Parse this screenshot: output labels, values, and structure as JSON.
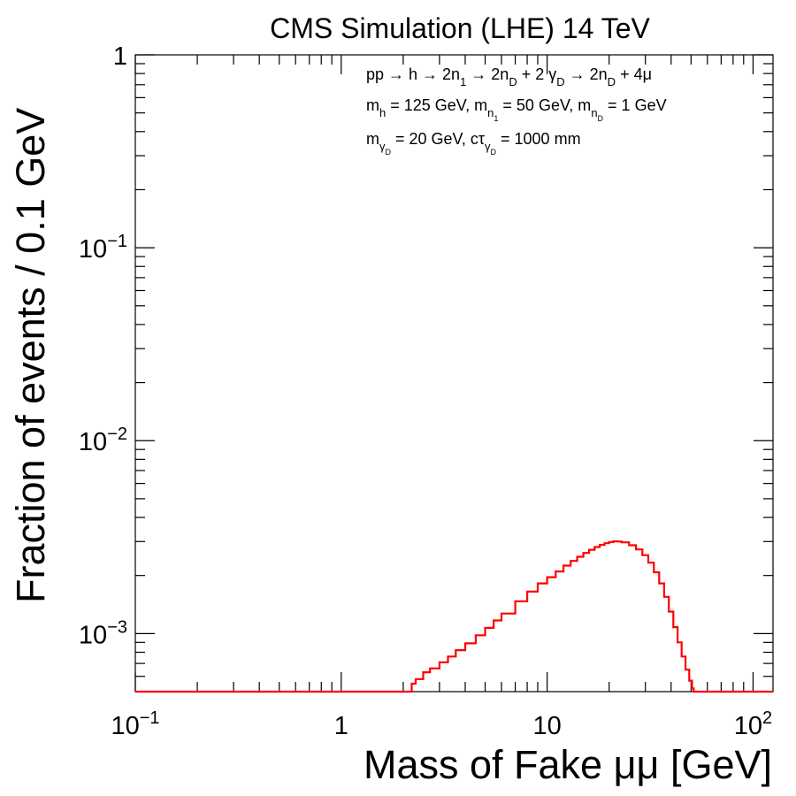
{
  "chart_data": {
    "type": "line",
    "title": "CMS Simulation (LHE) 14 TeV",
    "xlabel": "Mass of Fake μμ [GeV]",
    "ylabel": "Fraction of events / 0.1 GeV",
    "x_scale": "log",
    "y_scale": "log",
    "xlim": [
      0.1,
      125
    ],
    "ylim": [
      0.0005,
      1
    ],
    "x_ticks": [
      {
        "value": 0.1,
        "base": "10",
        "exp": "−1"
      },
      {
        "value": 1,
        "base": "1",
        "exp": ""
      },
      {
        "value": 10,
        "base": "10",
        "exp": ""
      },
      {
        "value": 100,
        "base": "10",
        "exp": "2"
      }
    ],
    "y_ticks": [
      {
        "value": 0.001,
        "base": "10",
        "exp": "−3"
      },
      {
        "value": 0.01,
        "base": "10",
        "exp": "−2"
      },
      {
        "value": 0.1,
        "base": "10",
        "exp": "−1"
      },
      {
        "value": 1,
        "base": "1",
        "exp": ""
      }
    ],
    "legend_lines": [
      {
        "parts": [
          {
            "t": "pp → h → 2n"
          },
          {
            "t": "1",
            "sub": true
          },
          {
            "t": " → 2n"
          },
          {
            "t": "D",
            "sub": true
          },
          {
            "t": " + 2 γ"
          },
          {
            "t": "D",
            "sub": true
          },
          {
            "t": " → 2n"
          },
          {
            "t": "D",
            "sub": true
          },
          {
            "t": " + 4μ"
          }
        ]
      },
      {
        "parts": [
          {
            "t": "m"
          },
          {
            "t": "h",
            "sub": true
          },
          {
            "t": " = 125 GeV, m"
          },
          {
            "t": "n",
            "sub": true
          },
          {
            "t": "1",
            "subsub": true
          },
          {
            "t": " = 50 GeV, m"
          },
          {
            "t": "n",
            "sub": true
          },
          {
            "t": "D",
            "subsub": true
          },
          {
            "t": " = 1 GeV"
          }
        ]
      },
      {
        "parts": [
          {
            "t": "m"
          },
          {
            "t": "γ",
            "sub": true
          },
          {
            "t": "D",
            "subsub": true
          },
          {
            "t": " = 20 GeV, cτ"
          },
          {
            "t": "γ",
            "sub": true
          },
          {
            "t": "D",
            "subsub": true
          },
          {
            "t": " = 1000 mm"
          }
        ]
      }
    ],
    "series": [
      {
        "color": "#ff0000",
        "points": [
          [
            0.1,
            0.0005
          ],
          [
            2.2,
            0.0005
          ],
          [
            2.2,
            0.00055
          ],
          [
            2.3,
            0.00058
          ],
          [
            2.5,
            0.00063
          ],
          [
            2.7,
            0.00066
          ],
          [
            3.0,
            0.00071
          ],
          [
            3.3,
            0.00076
          ],
          [
            3.6,
            0.00082
          ],
          [
            4.0,
            0.00089
          ],
          [
            4.5,
            0.00098
          ],
          [
            5.0,
            0.00107
          ],
          [
            5.5,
            0.00117
          ],
          [
            6.0,
            0.00127
          ],
          [
            7.0,
            0.00147
          ],
          [
            8.0,
            0.00165
          ],
          [
            9.0,
            0.00182
          ],
          [
            10.0,
            0.00196
          ],
          [
            11.0,
            0.0021
          ],
          [
            12.0,
            0.00225
          ],
          [
            13.0,
            0.00238
          ],
          [
            14.0,
            0.0025
          ],
          [
            15.0,
            0.00262
          ],
          [
            16.0,
            0.00272
          ],
          [
            17.0,
            0.00281
          ],
          [
            18.0,
            0.00288
          ],
          [
            19.0,
            0.00294
          ],
          [
            20.0,
            0.00298
          ],
          [
            21.0,
            0.00301
          ],
          [
            22.0,
            0.003
          ],
          [
            23.0,
            0.00297
          ],
          [
            25.0,
            0.00287
          ],
          [
            27.0,
            0.00273
          ],
          [
            29.0,
            0.00255
          ],
          [
            31.0,
            0.00233
          ],
          [
            33.0,
            0.00208
          ],
          [
            35.0,
            0.00182
          ],
          [
            37.0,
            0.00155
          ],
          [
            39.0,
            0.0013
          ],
          [
            41.0,
            0.00108
          ],
          [
            43.0,
            0.0009
          ],
          [
            45.0,
            0.00076
          ],
          [
            47.0,
            0.00065
          ],
          [
            49.0,
            0.00057
          ],
          [
            50.5,
            0.00052
          ],
          [
            51.5,
            0.0005
          ],
          [
            125.0,
            0.0005
          ]
        ]
      }
    ]
  }
}
